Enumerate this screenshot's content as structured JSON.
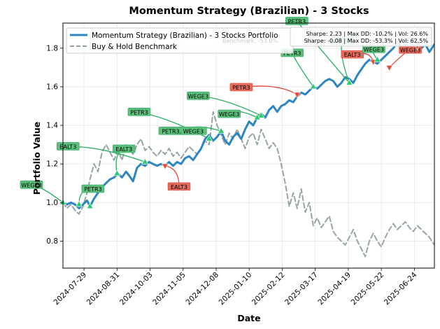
{
  "chart_data": {
    "type": "line",
    "title": "Momentum Strategy (Brazilian) - 3 Stocks",
    "xlabel": "Date",
    "ylabel": "Portfolio Value",
    "xlim": [
      "2024-07-08",
      "2025-07-14"
    ],
    "ylim": [
      0.66,
      1.93
    ],
    "xticks": [
      "2024-07-29",
      "2024-08-31",
      "2024-10-03",
      "2024-11-05",
      "2024-12-08",
      "2025-01-10",
      "2025-02-12",
      "2025-03-17",
      "2025-04-19",
      "2025-05-22",
      "2025-06-24"
    ],
    "yticks": [
      0.8,
      1.0,
      1.2,
      1.4,
      1.6,
      1.8
    ],
    "grid": true,
    "legend_position": "top-left",
    "stats_box": [
      "Sharpe: 2.23 | Max DD: -10.2% | Vol: 26.6%",
      "Sharpe: -0.08 | Max DD: -53.3% | Vol: 62.5%"
    ],
    "stats_hidden_fragment": "Benchmark: -53.0%",
    "series": [
      {
        "name": "Momentum Strategy (Brazilian) - 3 Stocks Portfolio",
        "color": "#2e86c1",
        "style": "solid",
        "points": [
          [
            "2024-07-08",
            1.0
          ],
          [
            "2024-07-12",
            0.99
          ],
          [
            "2024-07-16",
            1.0
          ],
          [
            "2024-07-20",
            0.99
          ],
          [
            "2024-07-24",
            0.97
          ],
          [
            "2024-07-28",
            0.99
          ],
          [
            "2024-08-01",
            1.01
          ],
          [
            "2024-08-04",
            0.98
          ],
          [
            "2024-08-08",
            1.02
          ],
          [
            "2024-08-12",
            1.05
          ],
          [
            "2024-08-16",
            1.08
          ],
          [
            "2024-08-20",
            1.1
          ],
          [
            "2024-08-24",
            1.12
          ],
          [
            "2024-08-28",
            1.13
          ],
          [
            "2024-09-01",
            1.15
          ],
          [
            "2024-09-05",
            1.13
          ],
          [
            "2024-09-09",
            1.16
          ],
          [
            "2024-09-12",
            1.14
          ],
          [
            "2024-09-16",
            1.11
          ],
          [
            "2024-09-20",
            1.18
          ],
          [
            "2024-09-24",
            1.2
          ],
          [
            "2024-09-28",
            1.19
          ],
          [
            "2024-10-02",
            1.21
          ],
          [
            "2024-10-06",
            1.2
          ],
          [
            "2024-10-10",
            1.19
          ],
          [
            "2024-10-14",
            1.2
          ],
          [
            "2024-10-18",
            1.19
          ],
          [
            "2024-10-22",
            1.21
          ],
          [
            "2024-10-26",
            1.19
          ],
          [
            "2024-10-30",
            1.21
          ],
          [
            "2024-11-03",
            1.2
          ],
          [
            "2024-11-07",
            1.23
          ],
          [
            "2024-11-11",
            1.24
          ],
          [
            "2024-11-15",
            1.22
          ],
          [
            "2024-11-19",
            1.25
          ],
          [
            "2024-11-23",
            1.28
          ],
          [
            "2024-11-27",
            1.33
          ],
          [
            "2024-12-01",
            1.35
          ],
          [
            "2024-12-05",
            1.32
          ],
          [
            "2024-12-09",
            1.34
          ],
          [
            "2024-12-13",
            1.37
          ],
          [
            "2024-12-17",
            1.32
          ],
          [
            "2024-12-21",
            1.3
          ],
          [
            "2024-12-25",
            1.34
          ],
          [
            "2024-12-29",
            1.36
          ],
          [
            "2025-01-02",
            1.33
          ],
          [
            "2025-01-06",
            1.38
          ],
          [
            "2025-01-10",
            1.42
          ],
          [
            "2025-01-14",
            1.4
          ],
          [
            "2025-01-18",
            1.44
          ],
          [
            "2025-01-22",
            1.46
          ],
          [
            "2025-01-26",
            1.44
          ],
          [
            "2025-01-30",
            1.48
          ],
          [
            "2025-02-03",
            1.5
          ],
          [
            "2025-02-07",
            1.47
          ],
          [
            "2025-02-11",
            1.5
          ],
          [
            "2025-02-15",
            1.51
          ],
          [
            "2025-02-19",
            1.53
          ],
          [
            "2025-02-23",
            1.52
          ],
          [
            "2025-02-27",
            1.55
          ],
          [
            "2025-03-03",
            1.57
          ],
          [
            "2025-03-07",
            1.56
          ],
          [
            "2025-03-11",
            1.58
          ],
          [
            "2025-03-15",
            1.6
          ],
          [
            "2025-03-19",
            1.59
          ],
          [
            "2025-03-23",
            1.61
          ],
          [
            "2025-03-27",
            1.63
          ],
          [
            "2025-03-31",
            1.64
          ],
          [
            "2025-04-04",
            1.63
          ],
          [
            "2025-04-08",
            1.6
          ],
          [
            "2025-04-12",
            1.62
          ],
          [
            "2025-04-16",
            1.65
          ],
          [
            "2025-04-20",
            1.64
          ],
          [
            "2025-04-24",
            1.62
          ],
          [
            "2025-04-28",
            1.66
          ],
          [
            "2025-05-02",
            1.69
          ],
          [
            "2025-05-06",
            1.72
          ],
          [
            "2025-05-10",
            1.74
          ],
          [
            "2025-05-14",
            1.73
          ],
          [
            "2025-05-18",
            1.72
          ],
          [
            "2025-05-22",
            1.74
          ],
          [
            "2025-05-26",
            1.76
          ],
          [
            "2025-05-30",
            1.78
          ],
          [
            "2025-06-03",
            1.8
          ],
          [
            "2025-06-07",
            1.83
          ],
          [
            "2025-06-11",
            1.8
          ],
          [
            "2025-06-15",
            1.82
          ],
          [
            "2025-06-19",
            1.84
          ],
          [
            "2025-06-23",
            1.81
          ],
          [
            "2025-06-27",
            1.83
          ],
          [
            "2025-07-01",
            1.8
          ],
          [
            "2025-07-05",
            1.82
          ],
          [
            "2025-07-09",
            1.78
          ],
          [
            "2025-07-14",
            1.82
          ]
        ]
      },
      {
        "name": "Buy & Hold Benchmark",
        "color": "#95a5a6",
        "style": "dashed",
        "points": [
          [
            "2024-07-08",
            1.0
          ],
          [
            "2024-07-12",
            0.97
          ],
          [
            "2024-07-16",
            0.99
          ],
          [
            "2024-07-20",
            0.96
          ],
          [
            "2024-07-24",
            0.94
          ],
          [
            "2024-07-28",
            0.98
          ],
          [
            "2024-08-01",
            1.05
          ],
          [
            "2024-08-04",
            1.12
          ],
          [
            "2024-08-08",
            1.2
          ],
          [
            "2024-08-12",
            1.16
          ],
          [
            "2024-08-16",
            1.26
          ],
          [
            "2024-08-20",
            1.3
          ],
          [
            "2024-08-24",
            1.26
          ],
          [
            "2024-08-28",
            1.22
          ],
          [
            "2024-09-01",
            1.27
          ],
          [
            "2024-09-05",
            1.22
          ],
          [
            "2024-09-09",
            1.3
          ],
          [
            "2024-09-12",
            1.28
          ],
          [
            "2024-09-16",
            1.25
          ],
          [
            "2024-09-20",
            1.3
          ],
          [
            "2024-09-24",
            1.33
          ],
          [
            "2024-09-28",
            1.27
          ],
          [
            "2024-10-02",
            1.29
          ],
          [
            "2024-10-06",
            1.26
          ],
          [
            "2024-10-10",
            1.24
          ],
          [
            "2024-10-14",
            1.27
          ],
          [
            "2024-10-18",
            1.25
          ],
          [
            "2024-10-22",
            1.28
          ],
          [
            "2024-10-26",
            1.24
          ],
          [
            "2024-10-30",
            1.26
          ],
          [
            "2024-11-03",
            1.23
          ],
          [
            "2024-11-07",
            1.26
          ],
          [
            "2024-11-11",
            1.29
          ],
          [
            "2024-11-15",
            1.27
          ],
          [
            "2024-11-19",
            1.25
          ],
          [
            "2024-11-23",
            1.28
          ],
          [
            "2024-11-27",
            1.32
          ],
          [
            "2024-12-01",
            1.3
          ],
          [
            "2024-12-05",
            1.47
          ],
          [
            "2024-12-09",
            1.4
          ],
          [
            "2024-12-13",
            1.35
          ],
          [
            "2024-12-17",
            1.3
          ],
          [
            "2024-12-21",
            1.36
          ],
          [
            "2024-12-25",
            1.33
          ],
          [
            "2024-12-29",
            1.38
          ],
          [
            "2025-01-02",
            1.33
          ],
          [
            "2025-01-06",
            1.28
          ],
          [
            "2025-01-10",
            1.34
          ],
          [
            "2025-01-14",
            1.36
          ],
          [
            "2025-01-18",
            1.3
          ],
          [
            "2025-01-22",
            1.38
          ],
          [
            "2025-01-26",
            1.33
          ],
          [
            "2025-01-30",
            1.28
          ],
          [
            "2025-02-03",
            1.31
          ],
          [
            "2025-02-07",
            1.28
          ],
          [
            "2025-02-11",
            1.2
          ],
          [
            "2025-02-15",
            1.1
          ],
          [
            "2025-02-19",
            0.98
          ],
          [
            "2025-02-23",
            1.05
          ],
          [
            "2025-02-27",
            0.97
          ],
          [
            "2025-03-03",
            1.07
          ],
          [
            "2025-03-07",
            0.95
          ],
          [
            "2025-03-11",
            1.0
          ],
          [
            "2025-03-15",
            0.88
          ],
          [
            "2025-03-19",
            0.92
          ],
          [
            "2025-03-23",
            0.87
          ],
          [
            "2025-03-27",
            0.9
          ],
          [
            "2025-03-31",
            0.93
          ],
          [
            "2025-04-04",
            0.85
          ],
          [
            "2025-04-08",
            0.82
          ],
          [
            "2025-04-12",
            0.8
          ],
          [
            "2025-04-16",
            0.78
          ],
          [
            "2025-04-20",
            0.82
          ],
          [
            "2025-04-24",
            0.86
          ],
          [
            "2025-04-28",
            0.8
          ],
          [
            "2025-05-02",
            0.76
          ],
          [
            "2025-05-06",
            0.72
          ],
          [
            "2025-05-10",
            0.8
          ],
          [
            "2025-05-14",
            0.84
          ],
          [
            "2025-05-18",
            0.8
          ],
          [
            "2025-05-22",
            0.77
          ],
          [
            "2025-05-26",
            0.82
          ],
          [
            "2025-05-30",
            0.86
          ],
          [
            "2025-06-03",
            0.89
          ],
          [
            "2025-06-07",
            0.86
          ],
          [
            "2025-06-11",
            0.88
          ],
          [
            "2025-06-15",
            0.9
          ],
          [
            "2025-06-19",
            0.87
          ],
          [
            "2025-06-23",
            0.85
          ],
          [
            "2025-06-27",
            0.88
          ],
          [
            "2025-07-01",
            0.86
          ],
          [
            "2025-07-05",
            0.84
          ],
          [
            "2025-07-09",
            0.82
          ],
          [
            "2025-07-14",
            0.78
          ]
        ]
      }
    ],
    "trades": [
      {
        "label": "WEGE3",
        "action": "buy",
        "date": "2024-07-08",
        "value": 1.0,
        "label_pos": [
          -45,
          -25
        ]
      },
      {
        "label": "PETR3",
        "action": "buy",
        "date": "2024-07-24",
        "value": 0.99,
        "label_pos": [
          20,
          -22
        ]
      },
      {
        "label": "",
        "action": "buy",
        "date": "2024-08-04",
        "value": 0.98,
        "label_pos": null
      },
      {
        "label": "EALT3",
        "action": "buy",
        "date": "2024-08-31",
        "value": 1.15,
        "label_pos": [
          10,
          -35
        ]
      },
      {
        "label": "EALT3",
        "action": "buy",
        "date": "2024-09-28",
        "value": 1.21,
        "label_pos": [
          -110,
          -22
        ]
      },
      {
        "label": "EALT3",
        "action": "sell",
        "date": "2024-10-18",
        "value": 1.19,
        "label_pos": [
          20,
          30
        ]
      },
      {
        "label": "PETR3",
        "action": "buy",
        "date": "2024-12-01",
        "value": 1.33,
        "label_pos": [
          -100,
          -38
        ]
      },
      {
        "label": "PETR3, WEGE3",
        "action": "buy",
        "date": "2024-12-13",
        "value": 1.37,
        "label_pos": [
          -55,
          0
        ]
      },
      {
        "label": "WEGE3",
        "action": "buy",
        "date": "2025-01-22",
        "value": 1.45,
        "label_pos": [
          -90,
          -28
        ]
      },
      {
        "label": "PETR3",
        "action": "sell",
        "date": "2025-02-27",
        "value": 1.56,
        "label_pos": [
          -80,
          -10
        ]
      },
      {
        "label": "PETR3",
        "action": "buy",
        "date": "2025-03-15",
        "value": 1.6,
        "label_pos": [
          -30,
          -48
        ]
      },
      {
        "label": "WEGE3",
        "action": "buy",
        "date": "2025-04-20",
        "value": 1.62,
        "label_pos": [
          -10,
          -60
        ]
      },
      {
        "label": "EALT3",
        "action": "sell",
        "date": "2025-05-14",
        "value": 1.73,
        "label_pos": [
          -30,
          -10
        ]
      },
      {
        "label": "WEGE3",
        "action": "buy",
        "date": "2025-05-18",
        "value": 1.74,
        "label_pos": [
          -5,
          -15
        ]
      },
      {
        "label": "WEGE3",
        "action": "sell",
        "date": "2025-05-30",
        "value": 1.7,
        "label_pos": [
          30,
          -25
        ]
      },
      {
        "label": "",
        "action": "sell",
        "date": "2025-06-27",
        "value": 1.81,
        "label_pos": null
      },
      {
        "label": "PETR3",
        "action": "buy",
        "date": "2025-04-20",
        "value": 1.62,
        "label_pos": [
          -75,
          -88
        ]
      },
      {
        "label": "WEGE3",
        "action": "buy",
        "date": "2025-01-18",
        "value": 1.44,
        "label_pos": [
          -40,
          -5
        ]
      }
    ],
    "colors": {
      "buy_box": "#5dbf7c",
      "sell_box": "#e36b5c",
      "buy_marker": "#2ecc71",
      "sell_marker": "#e74c3c",
      "buy_arrow": "#27ae60",
      "sell_arrow": "#e74c3c"
    }
  }
}
